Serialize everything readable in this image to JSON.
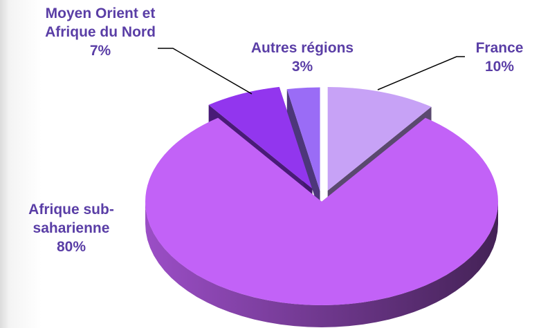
{
  "chart_data": {
    "type": "pie3d",
    "categories": [
      "France",
      "Afrique sub-saharienne",
      "Moyen Orient et Afrique du Nord",
      "Autres régions"
    ],
    "values": [
      10,
      80,
      7,
      3
    ],
    "value_labels": [
      "10%",
      "80%",
      "7%",
      "3%"
    ],
    "colors": [
      "#c7a2f6",
      "#c262f7",
      "#9236ee",
      "#9a6cf6"
    ]
  }
}
